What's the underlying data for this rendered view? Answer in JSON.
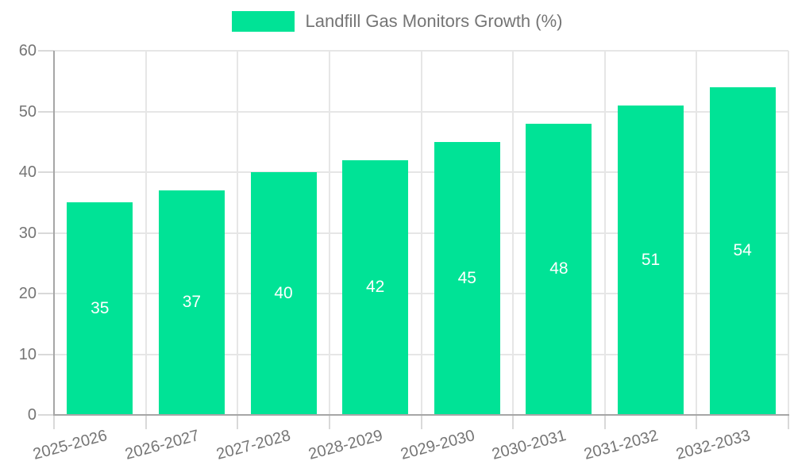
{
  "legend": {
    "label": "Landfill Gas Monitors Growth (%)"
  },
  "chart_data": {
    "type": "bar",
    "title": "Landfill Gas Monitors Growth (%)",
    "categories": [
      "2025-2026",
      "2026-2027",
      "2027-2028",
      "2028-2029",
      "2029-2030",
      "2030-2031",
      "2031-2032",
      "2032-2033"
    ],
    "values": [
      35,
      37,
      40,
      42,
      45,
      48,
      51,
      54
    ],
    "xlabel": "",
    "ylabel": "",
    "ylim": [
      0,
      60
    ],
    "yticks": [
      0,
      10,
      20,
      30,
      40,
      50,
      60
    ],
    "grid": true,
    "legend_position": "top",
    "bar_labels_inside": true
  },
  "colors": {
    "bar": "#00E396",
    "grid": "#e6e6e6",
    "tick": "#d9d9d9",
    "axis": "#a6a6a6",
    "text": "#757575",
    "value_label": "#ffffff",
    "background": "#ffffff"
  }
}
